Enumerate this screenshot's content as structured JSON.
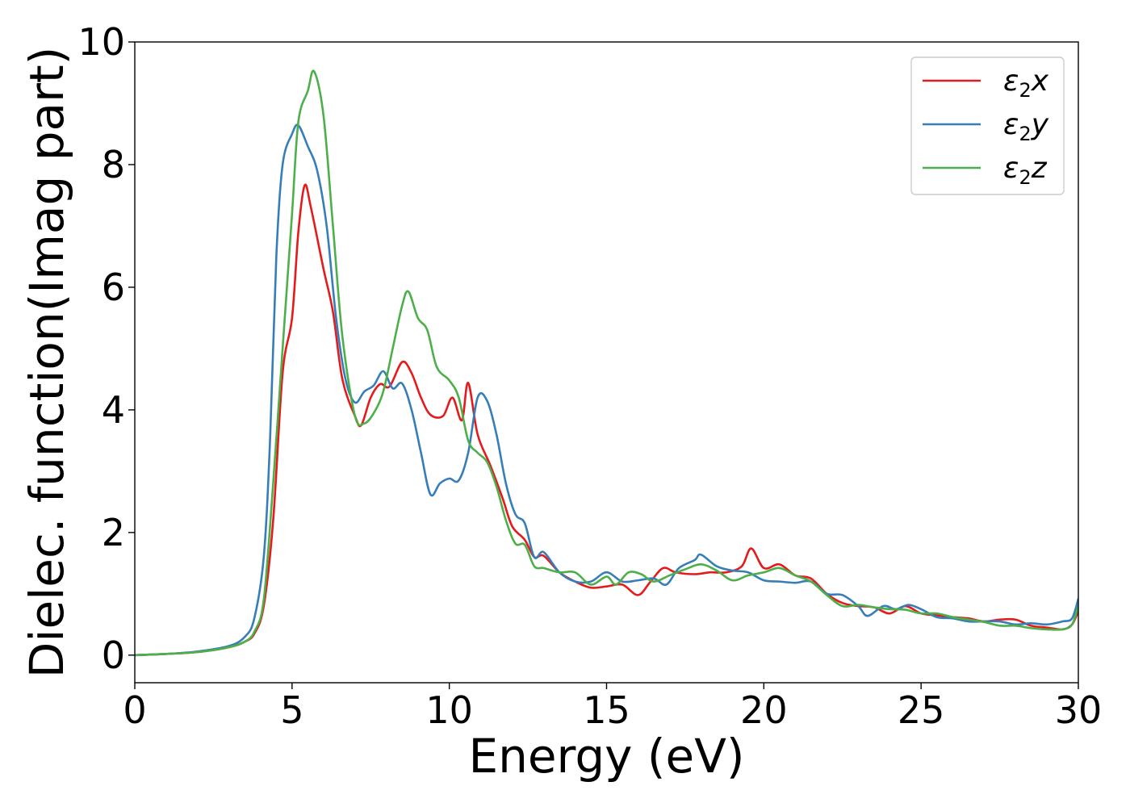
{
  "chart_data": {
    "type": "line",
    "title": "",
    "xlabel": "Energy (eV)",
    "ylabel": "Dielec. function(Imag part)",
    "xlim": [
      0,
      30
    ],
    "ylim": [
      -0.45,
      10
    ],
    "xticks": [
      0,
      5,
      10,
      15,
      20,
      25,
      30
    ],
    "yticks": [
      0,
      2,
      4,
      6,
      8,
      10
    ],
    "grid": false,
    "legend_position": "top-right",
    "series": [
      {
        "name": "ε₂x",
        "label_base": "ε",
        "label_sub": "2",
        "label_suffix": "x",
        "color": "#e41a1c",
        "points": [
          [
            0,
            0
          ],
          [
            1,
            0.02
          ],
          [
            2,
            0.05
          ],
          [
            3,
            0.13
          ],
          [
            3.5,
            0.22
          ],
          [
            3.8,
            0.35
          ],
          [
            4.1,
            0.8
          ],
          [
            4.4,
            2.2
          ],
          [
            4.7,
            4.6
          ],
          [
            5.0,
            5.5
          ],
          [
            5.2,
            6.9
          ],
          [
            5.4,
            7.66
          ],
          [
            5.6,
            7.3
          ],
          [
            6.0,
            6.3
          ],
          [
            6.3,
            5.6
          ],
          [
            6.6,
            4.5
          ],
          [
            7.0,
            3.9
          ],
          [
            7.2,
            3.75
          ],
          [
            7.5,
            4.2
          ],
          [
            7.8,
            4.42
          ],
          [
            8.1,
            4.38
          ],
          [
            8.5,
            4.78
          ],
          [
            8.8,
            4.6
          ],
          [
            9.1,
            4.2
          ],
          [
            9.4,
            3.92
          ],
          [
            9.8,
            3.9
          ],
          [
            10.1,
            4.2
          ],
          [
            10.4,
            3.83
          ],
          [
            10.6,
            4.44
          ],
          [
            10.9,
            3.6
          ],
          [
            11.3,
            3.1
          ],
          [
            11.7,
            2.55
          ],
          [
            12.0,
            2.1
          ],
          [
            12.4,
            1.88
          ],
          [
            12.7,
            1.6
          ],
          [
            13.0,
            1.62
          ],
          [
            13.5,
            1.35
          ],
          [
            14.0,
            1.2
          ],
          [
            14.5,
            1.1
          ],
          [
            15.0,
            1.12
          ],
          [
            15.5,
            1.15
          ],
          [
            16.0,
            0.98
          ],
          [
            16.4,
            1.2
          ],
          [
            16.8,
            1.42
          ],
          [
            17.2,
            1.35
          ],
          [
            17.8,
            1.32
          ],
          [
            18.3,
            1.35
          ],
          [
            18.8,
            1.35
          ],
          [
            19.3,
            1.45
          ],
          [
            19.6,
            1.74
          ],
          [
            20.0,
            1.42
          ],
          [
            20.5,
            1.48
          ],
          [
            21.0,
            1.3
          ],
          [
            21.5,
            1.25
          ],
          [
            22.0,
            1.0
          ],
          [
            22.5,
            0.85
          ],
          [
            23.0,
            0.8
          ],
          [
            23.5,
            0.78
          ],
          [
            24.0,
            0.68
          ],
          [
            24.5,
            0.8
          ],
          [
            25.0,
            0.68
          ],
          [
            25.5,
            0.65
          ],
          [
            26.0,
            0.62
          ],
          [
            26.5,
            0.6
          ],
          [
            27.0,
            0.55
          ],
          [
            27.5,
            0.58
          ],
          [
            28.0,
            0.58
          ],
          [
            28.5,
            0.48
          ],
          [
            29.0,
            0.45
          ],
          [
            29.5,
            0.42
          ],
          [
            29.8,
            0.5
          ],
          [
            30,
            0.72
          ]
        ]
      },
      {
        "name": "ε₂y",
        "label_base": "ε",
        "label_sub": "2",
        "label_suffix": "y",
        "color": "#377eb8",
        "points": [
          [
            0,
            0
          ],
          [
            1,
            0.02
          ],
          [
            2,
            0.06
          ],
          [
            3,
            0.15
          ],
          [
            3.5,
            0.3
          ],
          [
            3.8,
            0.6
          ],
          [
            4.1,
            1.6
          ],
          [
            4.3,
            3.5
          ],
          [
            4.5,
            6.5
          ],
          [
            4.7,
            8.0
          ],
          [
            5.0,
            8.5
          ],
          [
            5.2,
            8.64
          ],
          [
            5.5,
            8.3
          ],
          [
            5.8,
            7.9
          ],
          [
            6.1,
            7.0
          ],
          [
            6.4,
            5.5
          ],
          [
            6.7,
            4.5
          ],
          [
            7.0,
            4.12
          ],
          [
            7.3,
            4.3
          ],
          [
            7.6,
            4.4
          ],
          [
            7.9,
            4.63
          ],
          [
            8.2,
            4.35
          ],
          [
            8.5,
            4.43
          ],
          [
            8.8,
            4.0
          ],
          [
            9.1,
            3.3
          ],
          [
            9.4,
            2.62
          ],
          [
            9.7,
            2.8
          ],
          [
            10.0,
            2.88
          ],
          [
            10.3,
            2.85
          ],
          [
            10.6,
            3.3
          ],
          [
            10.9,
            4.2
          ],
          [
            11.2,
            4.15
          ],
          [
            11.5,
            3.6
          ],
          [
            11.8,
            2.8
          ],
          [
            12.1,
            2.3
          ],
          [
            12.4,
            2.15
          ],
          [
            12.7,
            1.6
          ],
          [
            13.0,
            1.68
          ],
          [
            13.5,
            1.35
          ],
          [
            14.0,
            1.2
          ],
          [
            14.5,
            1.2
          ],
          [
            15.0,
            1.35
          ],
          [
            15.5,
            1.2
          ],
          [
            16.0,
            1.22
          ],
          [
            16.5,
            1.25
          ],
          [
            16.9,
            1.15
          ],
          [
            17.3,
            1.42
          ],
          [
            17.8,
            1.55
          ],
          [
            18.0,
            1.64
          ],
          [
            18.5,
            1.45
          ],
          [
            19.0,
            1.38
          ],
          [
            19.5,
            1.35
          ],
          [
            20.0,
            1.22
          ],
          [
            20.5,
            1.2
          ],
          [
            21.0,
            1.18
          ],
          [
            21.5,
            1.2
          ],
          [
            22.0,
            1.0
          ],
          [
            22.5,
            0.98
          ],
          [
            23.0,
            0.8
          ],
          [
            23.3,
            0.64
          ],
          [
            23.8,
            0.8
          ],
          [
            24.2,
            0.75
          ],
          [
            24.6,
            0.82
          ],
          [
            25.0,
            0.75
          ],
          [
            25.5,
            0.62
          ],
          [
            26.0,
            0.6
          ],
          [
            26.5,
            0.55
          ],
          [
            27.0,
            0.55
          ],
          [
            27.5,
            0.55
          ],
          [
            28.0,
            0.5
          ],
          [
            28.5,
            0.52
          ],
          [
            29.0,
            0.5
          ],
          [
            29.5,
            0.55
          ],
          [
            29.8,
            0.6
          ],
          [
            30,
            0.92
          ]
        ]
      },
      {
        "name": "ε₂z",
        "label_base": "ε",
        "label_sub": "2",
        "label_suffix": "z",
        "color": "#4daf4a",
        "points": [
          [
            0,
            0
          ],
          [
            1,
            0.02
          ],
          [
            2,
            0.05
          ],
          [
            3,
            0.13
          ],
          [
            3.5,
            0.22
          ],
          [
            3.8,
            0.38
          ],
          [
            4.1,
            0.9
          ],
          [
            4.4,
            2.8
          ],
          [
            4.7,
            5.0
          ],
          [
            5.0,
            7.2
          ],
          [
            5.2,
            8.7
          ],
          [
            5.5,
            9.2
          ],
          [
            5.7,
            9.52
          ],
          [
            6.0,
            8.8
          ],
          [
            6.3,
            7.0
          ],
          [
            6.6,
            5.2
          ],
          [
            7.0,
            3.9
          ],
          [
            7.3,
            3.78
          ],
          [
            7.6,
            3.95
          ],
          [
            7.9,
            4.3
          ],
          [
            8.2,
            5.0
          ],
          [
            8.5,
            5.7
          ],
          [
            8.7,
            5.93
          ],
          [
            9.0,
            5.5
          ],
          [
            9.3,
            5.3
          ],
          [
            9.6,
            4.7
          ],
          [
            10.0,
            4.48
          ],
          [
            10.3,
            4.2
          ],
          [
            10.6,
            3.5
          ],
          [
            10.9,
            3.3
          ],
          [
            11.2,
            3.15
          ],
          [
            11.5,
            2.75
          ],
          [
            11.8,
            2.2
          ],
          [
            12.1,
            1.82
          ],
          [
            12.4,
            1.8
          ],
          [
            12.7,
            1.45
          ],
          [
            13.0,
            1.42
          ],
          [
            13.5,
            1.35
          ],
          [
            14.0,
            1.35
          ],
          [
            14.5,
            1.15
          ],
          [
            15.0,
            1.28
          ],
          [
            15.3,
            1.15
          ],
          [
            15.7,
            1.35
          ],
          [
            16.1,
            1.32
          ],
          [
            16.5,
            1.2
          ],
          [
            17.0,
            1.3
          ],
          [
            17.5,
            1.4
          ],
          [
            18.0,
            1.48
          ],
          [
            18.5,
            1.38
          ],
          [
            19.0,
            1.22
          ],
          [
            19.5,
            1.3
          ],
          [
            20.0,
            1.35
          ],
          [
            20.5,
            1.42
          ],
          [
            21.0,
            1.3
          ],
          [
            21.5,
            1.2
          ],
          [
            22.0,
            0.98
          ],
          [
            22.5,
            0.8
          ],
          [
            23.0,
            0.82
          ],
          [
            23.5,
            0.78
          ],
          [
            24.0,
            0.75
          ],
          [
            24.5,
            0.74
          ],
          [
            25.0,
            0.68
          ],
          [
            25.5,
            0.68
          ],
          [
            26.0,
            0.62
          ],
          [
            26.5,
            0.58
          ],
          [
            27.0,
            0.54
          ],
          [
            27.5,
            0.48
          ],
          [
            28.0,
            0.48
          ],
          [
            28.5,
            0.44
          ],
          [
            29.0,
            0.42
          ],
          [
            29.5,
            0.42
          ],
          [
            29.8,
            0.5
          ],
          [
            30,
            0.8
          ]
        ]
      }
    ]
  }
}
